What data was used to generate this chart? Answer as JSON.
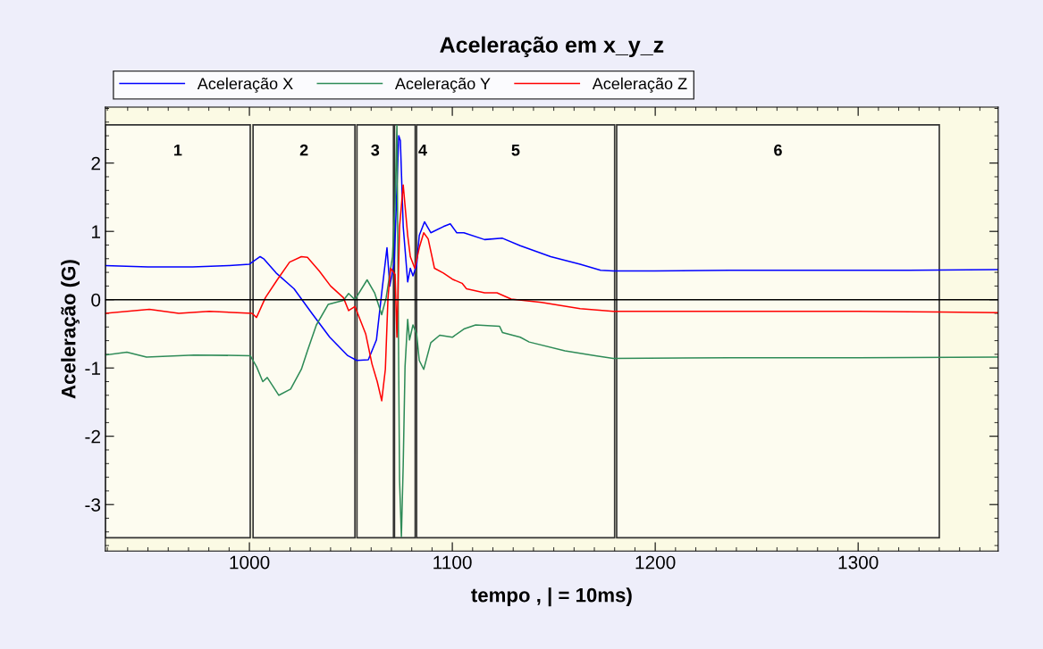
{
  "chart_data": {
    "type": "line",
    "title": "Aceleração em x_y_z",
    "xlabel": "tempo , | = 10ms)",
    "ylabel": "Aceleração (G)",
    "xlim": [
      929,
      1369
    ],
    "ylim": [
      -3.68,
      2.82
    ],
    "xticks": [
      1000,
      1100,
      1200,
      1300
    ],
    "yticks": [
      -3,
      -2,
      -1,
      0,
      1,
      2
    ],
    "legend": "top left",
    "grid": false,
    "marker": "none",
    "line_style": "solid",
    "ref_lines": [
      {
        "axis": "y",
        "value": 0,
        "color": "#000000"
      }
    ],
    "bands": [
      {
        "axis": "x",
        "from": 929,
        "to": 1000.4,
        "label": "1",
        "color": "#333333"
      },
      {
        "axis": "x",
        "from": 1001.8,
        "to": 1052,
        "label": "2",
        "color": "#333333"
      },
      {
        "axis": "x",
        "from": 1053,
        "to": 1071,
        "label": "3",
        "color": "#333333"
      },
      {
        "axis": "x",
        "from": 1071.5,
        "to": 1081.7,
        "label": "4",
        "color": "#333333"
      },
      {
        "axis": "x",
        "from": 1082.4,
        "to": 1180,
        "label": "5",
        "color": "#333333"
      },
      {
        "axis": "x",
        "from": 1181,
        "to": 1340,
        "label": "6",
        "color": "#333333"
      }
    ],
    "series": [
      {
        "name": "Aceleração X",
        "color": "#0000ff",
        "x": [
          929,
          950,
          972,
          990,
          1000,
          1005.3,
          1007,
          1013.2,
          1022,
          1030.8,
          1039.6,
          1048.5,
          1052.9,
          1058.6,
          1062.6,
          1065.2,
          1067.8,
          1069.2,
          1071.4,
          1073.6,
          1074.4,
          1075.8,
          1078,
          1079.3,
          1080.6,
          1082.4,
          1083.7,
          1086.3,
          1089.4,
          1095.6,
          1099,
          1102.2,
          1105.7,
          1115.9,
          1124.7,
          1133.5,
          1148.5,
          1163,
          1173.1,
          1179.3,
          1199.6,
          1236.6,
          1280,
          1320,
          1369
        ],
        "values": [
          0.5,
          0.48,
          0.48,
          0.5,
          0.52,
          0.63,
          0.6,
          0.39,
          0.16,
          -0.2,
          -0.55,
          -0.82,
          -0.89,
          -0.88,
          -0.59,
          0.1,
          0.76,
          0.2,
          0.55,
          2.4,
          2.33,
          1.07,
          0.26,
          0.46,
          0.35,
          0.5,
          0.94,
          1.14,
          0.98,
          1.07,
          1.11,
          0.98,
          0.98,
          0.88,
          0.9,
          0.79,
          0.63,
          0.52,
          0.43,
          0.42,
          0.42,
          0.43,
          0.43,
          0.43,
          0.44
        ]
      },
      {
        "name": "Aceleração Y",
        "color": "#2e8b57",
        "x": [
          929,
          939.6,
          949.3,
          972.7,
          1000.4,
          1003.5,
          1006.6,
          1008.8,
          1014.5,
          1020.3,
          1025.6,
          1028.6,
          1033,
          1038.8,
          1046.3,
          1048.9,
          1052,
          1058,
          1061.7,
          1065.2,
          1067.4,
          1070.5,
          1071.8,
          1072.7,
          1073.6,
          1074,
          1074.9,
          1075.8,
          1076.7,
          1078,
          1078.9,
          1080.6,
          1082.4,
          1083.7,
          1085.9,
          1089.4,
          1093.8,
          1100,
          1105.7,
          1111.5,
          1123.3,
          1124.7,
          1133.5,
          1137.9,
          1155.5,
          1170.5,
          1179.3,
          1236.6,
          1300,
          1369
        ],
        "values": [
          -0.81,
          -0.77,
          -0.84,
          -0.81,
          -0.82,
          -0.98,
          -1.2,
          -1.14,
          -1.4,
          -1.31,
          -1.02,
          -0.75,
          -0.37,
          -0.07,
          -0.01,
          0.09,
          0.0,
          0.29,
          0.1,
          -0.22,
          0.03,
          0.63,
          1.41,
          2.55,
          -1.11,
          -2.64,
          -3.47,
          -2.42,
          -0.98,
          -0.29,
          -0.59,
          -0.37,
          -0.5,
          -0.89,
          -1.02,
          -0.63,
          -0.52,
          -0.55,
          -0.43,
          -0.37,
          -0.39,
          -0.48,
          -0.55,
          -0.62,
          -0.75,
          -0.82,
          -0.86,
          -0.85,
          -0.85,
          -0.84
        ]
      },
      {
        "name": "Aceleração Z",
        "color": "#ff0000",
        "x": [
          929,
          950.7,
          965.2,
          980.2,
          1001.3,
          1003.5,
          1007.9,
          1013.7,
          1019.8,
          1025.6,
          1028.6,
          1034.4,
          1040,
          1046.3,
          1048.9,
          1052,
          1057.3,
          1060.4,
          1063,
          1065.2,
          1067,
          1068.3,
          1069.6,
          1071.8,
          1072.7,
          1074,
          1075.8,
          1078,
          1079.3,
          1081.5,
          1083.7,
          1085.9,
          1088.1,
          1091.2,
          1095.6,
          1100,
          1104.8,
          1107,
          1115.9,
          1122,
          1129,
          1144,
          1163,
          1179.3,
          1214.5,
          1250,
          1300,
          1340,
          1369
        ],
        "values": [
          -0.2,
          -0.14,
          -0.2,
          -0.17,
          -0.2,
          -0.26,
          0.03,
          0.29,
          0.55,
          0.63,
          0.62,
          0.42,
          0.2,
          0.03,
          -0.16,
          -0.1,
          -0.5,
          -0.94,
          -1.2,
          -1.48,
          -1.02,
          0.03,
          0.46,
          0.37,
          -0.55,
          1.07,
          1.68,
          0.94,
          0.63,
          0.46,
          0.76,
          0.98,
          0.89,
          0.46,
          0.39,
          0.3,
          0.24,
          0.16,
          0.1,
          0.1,
          0.01,
          -0.04,
          -0.13,
          -0.17,
          -0.17,
          -0.17,
          -0.17,
          -0.18,
          -0.19
        ]
      }
    ]
  }
}
